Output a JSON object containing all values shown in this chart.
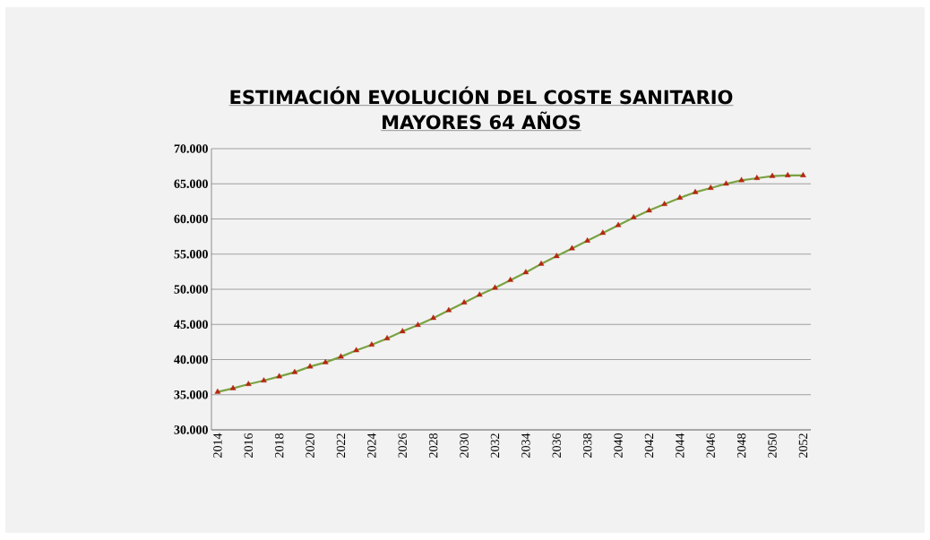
{
  "chart_data": {
    "type": "line",
    "title": "ESTIMACIÓN EVOLUCIÓN DEL COSTE SANITARIO",
    "subtitle": "MAYORES 64 AÑOS",
    "x": [
      2014,
      2015,
      2016,
      2017,
      2018,
      2019,
      2020,
      2021,
      2022,
      2023,
      2024,
      2025,
      2026,
      2027,
      2028,
      2029,
      2030,
      2031,
      2032,
      2033,
      2034,
      2035,
      2036,
      2037,
      2038,
      2039,
      2040,
      2041,
      2042,
      2043,
      2044,
      2045,
      2046,
      2047,
      2048,
      2049,
      2050,
      2051,
      2052
    ],
    "series": [
      {
        "color": "#7aa342",
        "marker": "triangle",
        "colors": [
          "#b5260f",
          "#b5260f",
          "#b5260f",
          "#b5260f",
          "#b5260f",
          "#b5260f",
          "#b5260f",
          "#b5260f",
          "#b5260f",
          "#b5260f",
          "#b5260f",
          "#b5260f",
          "#b5260f",
          "#b5260f",
          "#b5260f",
          "#b5260f",
          "#b5260f",
          "#b5260f",
          "#b5260f",
          "#b5260f",
          "#b5260f",
          "#b5260f",
          "#b5260f",
          "#b5260f",
          "#b5260f",
          "#b5260f",
          "#b5260f",
          "#b5260f",
          "#b5260f",
          "#b5260f",
          "#b5260f",
          "#b5260f",
          "#b5260f",
          "#b5260f",
          "#b5260f",
          "#b5260f",
          "#b5260f",
          "#b5260f",
          "#b5260f"
        ],
        "values": [
          35400,
          35900,
          36500,
          37000,
          37600,
          38200,
          39000,
          39600,
          40400,
          41300,
          42100,
          43000,
          44000,
          44900,
          45900,
          47000,
          48100,
          49200,
          50200,
          51300,
          52400,
          53600,
          54700,
          55800,
          56900,
          58000,
          59100,
          60200,
          61200,
          62100,
          63000,
          63800,
          64400,
          65000,
          65500,
          65800,
          66100,
          66200,
          66200
        ]
      }
    ],
    "xlim": [
      2013.6,
      2052.5
    ],
    "xticks": [
      2014,
      2016,
      2018,
      2020,
      2022,
      2024,
      2026,
      2028,
      2030,
      2032,
      2034,
      2036,
      2038,
      2040,
      2042,
      2044,
      2046,
      2048,
      2050,
      2052
    ],
    "ylim": [
      30000,
      70000
    ],
    "yticks": [
      {
        "value": 30000,
        "label": "30.000"
      },
      {
        "value": 35000,
        "label": "35.000"
      },
      {
        "value": 40000,
        "label": "40.000"
      },
      {
        "value": 45000,
        "label": "45.000"
      },
      {
        "value": 50000,
        "label": "50.000"
      },
      {
        "value": 55000,
        "label": "55.000"
      },
      {
        "value": 60000,
        "label": "60.000"
      },
      {
        "value": 65000,
        "label": "65.000"
      },
      {
        "value": 70000,
        "label": "70.000"
      }
    ],
    "grid": "y"
  }
}
